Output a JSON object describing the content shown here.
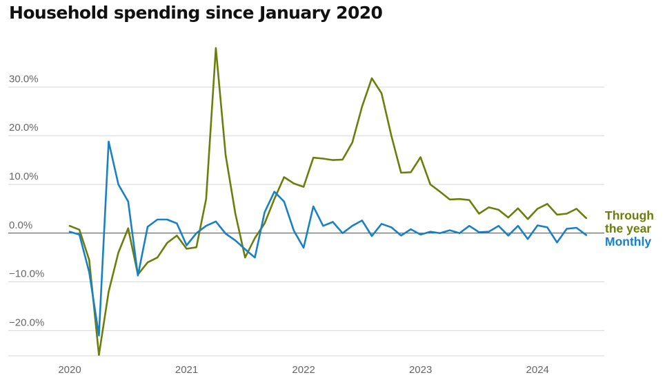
{
  "chart_data": {
    "type": "line",
    "title": "Household spending since January 2020",
    "xlabel": "",
    "ylabel": "",
    "ylim": [
      -26,
      40
    ],
    "xlim": [
      2020.0,
      2024.5
    ],
    "y_ticks": [
      {
        "value": 30,
        "label": "30.0%"
      },
      {
        "value": 20,
        "label": "20.0%"
      },
      {
        "value": 10,
        "label": "10.0%"
      },
      {
        "value": 0,
        "label": "0.0%"
      },
      {
        "value": -10,
        "label": "−10.0%"
      },
      {
        "value": -20,
        "label": "−20.0%"
      }
    ],
    "x_ticks": [
      {
        "value": 2020,
        "label": "2020"
      },
      {
        "value": 2021,
        "label": "2021"
      },
      {
        "value": 2022,
        "label": "2022"
      },
      {
        "value": 2023,
        "label": "2023"
      },
      {
        "value": 2024,
        "label": "2024"
      }
    ],
    "x_start": 2020.0,
    "x_step": 0.08333,
    "series": [
      {
        "name": "Through the year",
        "label_lines": [
          "Through",
          "the year"
        ],
        "color": "#6b7d0a",
        "values": [
          1.5,
          0.7,
          -5.5,
          -25.0,
          -12.0,
          -4.0,
          1.0,
          -8.5,
          -6.0,
          -5.0,
          -2.0,
          -0.5,
          -3.2,
          -2.9,
          7.0,
          38.0,
          16.0,
          4.0,
          -5.0,
          -1.0,
          2.0,
          7.0,
          11.5,
          10.2,
          9.5,
          15.5,
          15.3,
          15.0,
          15.1,
          18.6,
          26.0,
          31.8,
          28.7,
          20.0,
          12.4,
          12.5,
          15.6,
          10.0,
          8.5,
          6.9,
          7.0,
          6.8,
          4.0,
          5.3,
          4.8,
          3.2,
          5.1,
          2.9,
          5.0,
          6.0,
          3.8,
          4.0,
          5.0,
          3.1
        ]
      },
      {
        "name": "Monthly",
        "label_lines": [
          "Monthly"
        ],
        "color": "#1880c6",
        "values": [
          0.3,
          -0.3,
          -8.0,
          -21.0,
          18.8,
          10.0,
          6.5,
          -8.7,
          1.3,
          2.8,
          2.8,
          2.0,
          -2.5,
          0.0,
          1.5,
          2.4,
          -0.1,
          -1.5,
          -3.3,
          -5.0,
          4.3,
          8.5,
          6.5,
          0.5,
          -3.0,
          5.5,
          1.5,
          2.3,
          0.0,
          1.5,
          2.6,
          -0.6,
          1.9,
          1.2,
          -0.5,
          0.8,
          -0.3,
          0.3,
          0.0,
          0.6,
          0.0,
          1.5,
          0.2,
          0.3,
          1.5,
          -0.5,
          1.5,
          -1.2,
          1.6,
          1.2,
          -1.9,
          0.9,
          1.1,
          -0.4
        ]
      }
    ]
  }
}
